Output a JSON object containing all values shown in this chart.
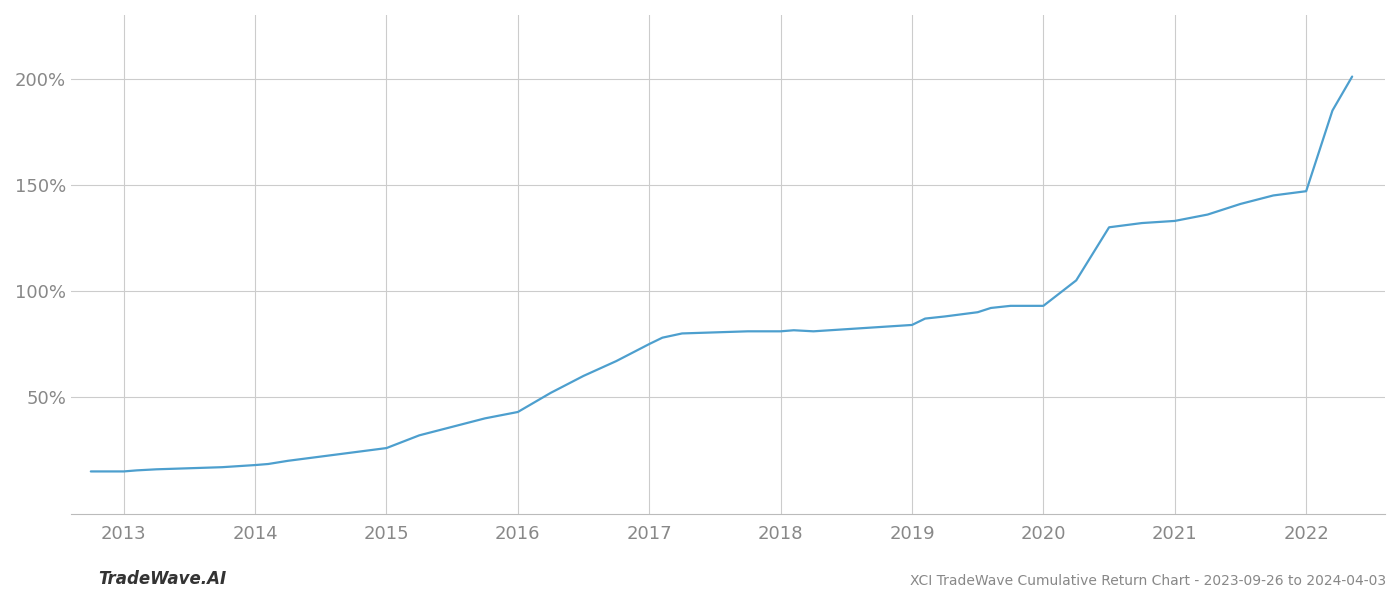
{
  "title": "XCI TradeWave Cumulative Return Chart - 2023-09-26 to 2024-04-03",
  "watermark": "TradeWave.AI",
  "line_color": "#4d9fce",
  "background_color": "#ffffff",
  "grid_color": "#cccccc",
  "x_years": [
    2013,
    2014,
    2015,
    2016,
    2017,
    2018,
    2019,
    2020,
    2021,
    2022
  ],
  "y_ticks": [
    50,
    100,
    150,
    200
  ],
  "y_tick_labels": [
    "50%",
    "100%",
    "150%",
    "200%"
  ],
  "x_data": [
    2012.75,
    2013.0,
    2013.1,
    2013.25,
    2013.5,
    2013.75,
    2014.0,
    2014.1,
    2014.25,
    2014.5,
    2014.75,
    2015.0,
    2015.25,
    2015.5,
    2015.75,
    2016.0,
    2016.25,
    2016.5,
    2016.75,
    2017.0,
    2017.1,
    2017.25,
    2017.5,
    2017.75,
    2018.0,
    2018.1,
    2018.25,
    2018.5,
    2018.75,
    2019.0,
    2019.1,
    2019.25,
    2019.5,
    2019.6,
    2019.75,
    2020.0,
    2020.25,
    2020.5,
    2020.75,
    2021.0,
    2021.25,
    2021.5,
    2021.75,
    2022.0,
    2022.2,
    2022.35
  ],
  "y_data": [
    15,
    15,
    15.5,
    16,
    16.5,
    17,
    18,
    18.5,
    20,
    22,
    24,
    26,
    32,
    36,
    40,
    43,
    52,
    60,
    67,
    75,
    78,
    80,
    80.5,
    81,
    81,
    81.5,
    81,
    82,
    83,
    84,
    87,
    88,
    90,
    92,
    93,
    93,
    105,
    130,
    132,
    133,
    136,
    141,
    145,
    147,
    185,
    201
  ],
  "xlim": [
    2012.6,
    2022.6
  ],
  "ylim": [
    -5,
    230
  ],
  "line_width": 1.6,
  "font_color": "#888888",
  "title_fontsize": 10,
  "tick_fontsize": 13,
  "watermark_fontsize": 12
}
